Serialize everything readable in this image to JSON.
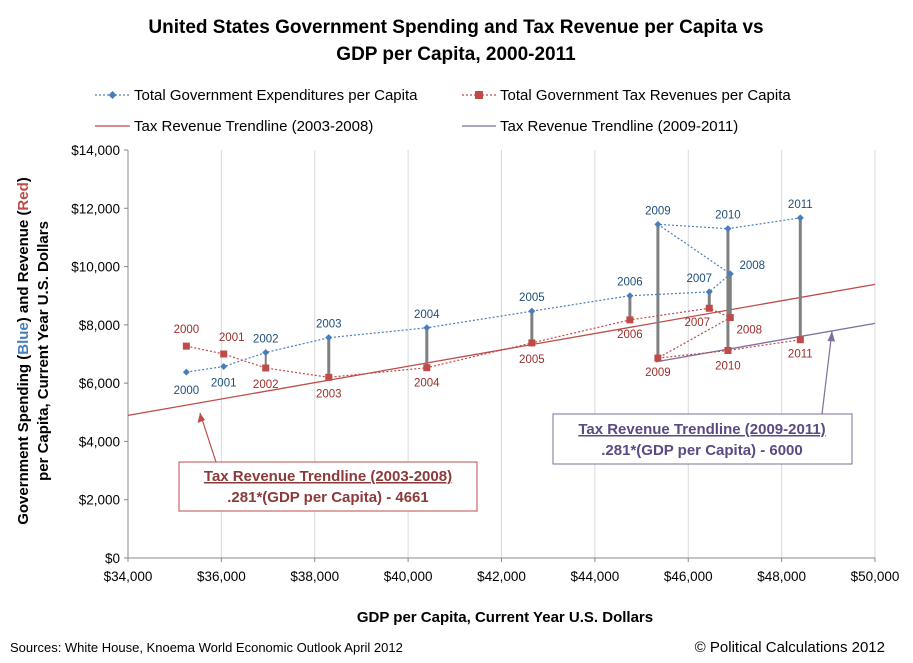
{
  "chart_data": {
    "type": "scatter",
    "title_line1": "United States Government Spending and Tax Revenue per Capita vs",
    "title_line2": "GDP per Capita, 2000-2011",
    "xlabel": "GDP per Capita, Current Year U.S. Dollars",
    "ylabel_line1": {
      "p1": "Government Spending (",
      "blue": "Blue",
      "p2": ") and Revenue (",
      "red": "Red",
      "p3": ")"
    },
    "ylabel_line2": "per Capita, Current Year U.S. Dollars",
    "xlim": [
      34000,
      50000
    ],
    "ylim": [
      0,
      14000
    ],
    "x_ticks": [
      34000,
      36000,
      38000,
      40000,
      42000,
      44000,
      46000,
      48000,
      50000
    ],
    "y_ticks": [
      0,
      2000,
      4000,
      6000,
      8000,
      10000,
      12000,
      14000
    ],
    "x_tick_labels": [
      "$34,000",
      "$36,000",
      "$38,000",
      "$40,000",
      "$42,000",
      "$44,000",
      "$46,000",
      "$48,000",
      "$50,000"
    ],
    "y_tick_labels": [
      "$0",
      "$2,000",
      "$4,000",
      "$6,000",
      "$8,000",
      "$10,000",
      "$12,000",
      "$14,000"
    ],
    "grid": {
      "vertical": true,
      "horizontal": false
    },
    "legend_position": "top",
    "years": [
      "2000",
      "2001",
      "2002",
      "2003",
      "2004",
      "2005",
      "2006",
      "2007",
      "2008",
      "2009",
      "2010",
      "2011"
    ],
    "gdp_per_capita": [
      35250,
      36050,
      36950,
      38300,
      40400,
      42650,
      44750,
      46450,
      46900,
      45350,
      46850,
      48400
    ],
    "series": [
      {
        "name": "Total Government Expenditures per Capita",
        "color": "#4a7ebb",
        "marker": "diamond",
        "line": "dotted",
        "values": [
          6380,
          6570,
          7050,
          7560,
          7900,
          8470,
          9000,
          9130,
          9750,
          11450,
          11300,
          11670
        ]
      },
      {
        "name": "Total Government Tax Revenues per Capita",
        "color": "#be4b48",
        "marker": "square",
        "line": "dotted",
        "values": [
          7270,
          7000,
          6520,
          6200,
          6530,
          7380,
          8170,
          8570,
          8250,
          6860,
          7120,
          7490
        ]
      },
      {
        "name": "Tax Revenue Trendline (2003-2008)",
        "color": "#be4b48",
        "line": "solid",
        "slope": 0.281,
        "intercept": -4661,
        "x_range": [
          34000,
          50000
        ]
      },
      {
        "name": "Tax Revenue Trendline (2009-2011)",
        "color": "#7f6e9e",
        "line": "solid",
        "slope": 0.281,
        "intercept": -6000,
        "x_range": [
          45300,
          50000
        ]
      }
    ],
    "gap_bar_color": "#808080",
    "annotations": [
      {
        "title": "Tax Revenue Trendline (2003-2008)",
        "formula": ".281*(GDP per Capita) - 4661",
        "color": "#8b3a3a"
      },
      {
        "title": "Tax Revenue Trendline (2009-2011)",
        "formula": ".281*(GDP per Capita) - 6000",
        "color": "#5a4a82"
      }
    ]
  },
  "footer": {
    "sources": "Sources: White House, Knoema World Economic Outlook April 2012",
    "copyright": "© Political Calculations 2012"
  }
}
